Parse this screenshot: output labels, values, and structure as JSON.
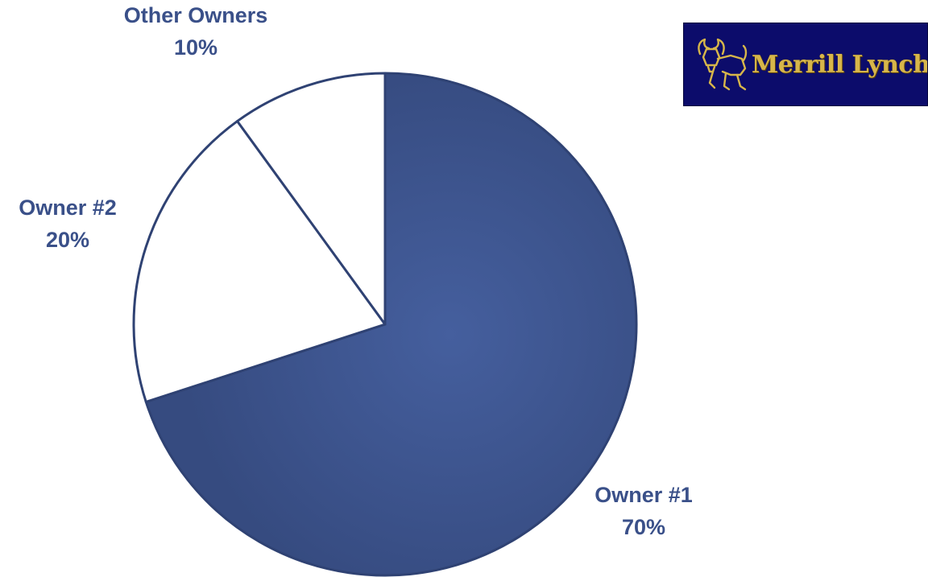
{
  "brand": {
    "name": "Merrill Lynch",
    "logo_icon": "bull-icon",
    "background_color": "#0c0c6b",
    "text_color": "#d7b64a"
  },
  "chart_data": {
    "type": "pie",
    "slices": [
      {
        "label": "Owner #1",
        "value": 70,
        "value_label": "70%",
        "color": "#3a5089"
      },
      {
        "label": "Owner #2",
        "value": 20,
        "value_label": "20%",
        "color": "#ffffff"
      },
      {
        "label": "Other Owners",
        "value": 10,
        "value_label": "10%",
        "color": "#ffffff"
      }
    ],
    "label_color": "#3a5089",
    "outline_color": "#2f4273"
  }
}
